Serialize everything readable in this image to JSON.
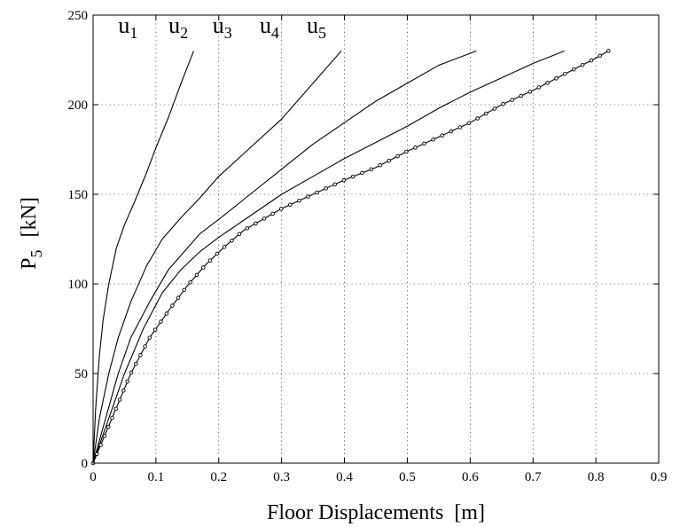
{
  "chart_data": {
    "type": "line",
    "xlabel": "Floor Displacements  [m]",
    "ylabel": "P",
    "ylabel_sub": "5",
    "ylabel_unit": "[kN]",
    "xlim": [
      0,
      0.9
    ],
    "ylim": [
      0,
      250
    ],
    "xticks": [
      0,
      0.1,
      0.2,
      0.3,
      0.4,
      0.5,
      0.6,
      0.7,
      0.8,
      0.9
    ],
    "xtick_labels": [
      "0",
      "0.1",
      "0.2",
      "0.3",
      "0.4",
      "0.5",
      "0.6",
      "0.7",
      "0.8",
      "0.9"
    ],
    "yticks": [
      0,
      50,
      100,
      150,
      200,
      250
    ],
    "ytick_labels": [
      "0",
      "50",
      "100",
      "150",
      "200",
      "250"
    ],
    "grid": true,
    "series": [
      {
        "name": "u1",
        "label_main": "u",
        "label_sub": "1",
        "marker": false,
        "label_at": [
          0.04,
          240
        ],
        "points": [
          [
            0,
            0
          ],
          [
            0.004,
            30
          ],
          [
            0.01,
            60
          ],
          [
            0.016,
            80
          ],
          [
            0.025,
            100
          ],
          [
            0.037,
            120
          ],
          [
            0.05,
            133
          ],
          [
            0.065,
            145
          ],
          [
            0.085,
            162
          ],
          [
            0.1,
            176
          ],
          [
            0.12,
            193
          ],
          [
            0.14,
            212
          ],
          [
            0.16,
            230
          ]
        ]
      },
      {
        "name": "u2",
        "label_main": "u",
        "label_sub": "2",
        "marker": false,
        "label_at": [
          0.12,
          240
        ],
        "points": [
          [
            0,
            0
          ],
          [
            0.01,
            25
          ],
          [
            0.025,
            50
          ],
          [
            0.04,
            70
          ],
          [
            0.06,
            90
          ],
          [
            0.085,
            110
          ],
          [
            0.11,
            125
          ],
          [
            0.14,
            137
          ],
          [
            0.17,
            148
          ],
          [
            0.2,
            160
          ],
          [
            0.25,
            176
          ],
          [
            0.3,
            192
          ],
          [
            0.35,
            212
          ],
          [
            0.395,
            230
          ]
        ]
      },
      {
        "name": "u3",
        "label_main": "u",
        "label_sub": "3",
        "marker": false,
        "label_at": [
          0.19,
          240
        ],
        "points": [
          [
            0,
            0
          ],
          [
            0.02,
            25
          ],
          [
            0.04,
            50
          ],
          [
            0.06,
            70
          ],
          [
            0.09,
            90
          ],
          [
            0.12,
            108
          ],
          [
            0.15,
            120
          ],
          [
            0.17,
            128
          ],
          [
            0.2,
            136
          ],
          [
            0.25,
            150
          ],
          [
            0.3,
            164
          ],
          [
            0.35,
            178
          ],
          [
            0.4,
            190
          ],
          [
            0.45,
            202
          ],
          [
            0.5,
            212
          ],
          [
            0.55,
            222
          ],
          [
            0.61,
            230
          ]
        ]
      },
      {
        "name": "u4",
        "label_main": "u",
        "label_sub": "4",
        "marker": false,
        "label_at": [
          0.265,
          240
        ],
        "points": [
          [
            0,
            0
          ],
          [
            0.025,
            25
          ],
          [
            0.05,
            50
          ],
          [
            0.08,
            75
          ],
          [
            0.11,
            95
          ],
          [
            0.14,
            108
          ],
          [
            0.17,
            118
          ],
          [
            0.2,
            126
          ],
          [
            0.25,
            138
          ],
          [
            0.3,
            150
          ],
          [
            0.35,
            160
          ],
          [
            0.4,
            170
          ],
          [
            0.5,
            188
          ],
          [
            0.55,
            198
          ],
          [
            0.6,
            207
          ],
          [
            0.65,
            215
          ],
          [
            0.7,
            223
          ],
          [
            0.75,
            230
          ]
        ]
      },
      {
        "name": "u5",
        "label_main": "u",
        "label_sub": "5",
        "marker": true,
        "label_at": [
          0.34,
          240
        ],
        "points": [
          [
            0,
            0
          ],
          [
            0.03,
            25
          ],
          [
            0.06,
            50
          ],
          [
            0.09,
            70
          ],
          [
            0.12,
            85
          ],
          [
            0.15,
            99
          ],
          [
            0.18,
            111
          ],
          [
            0.21,
            121
          ],
          [
            0.24,
            130
          ],
          [
            0.27,
            136
          ],
          [
            0.3,
            142
          ],
          [
            0.35,
            150
          ],
          [
            0.4,
            158
          ],
          [
            0.45,
            165
          ],
          [
            0.5,
            174
          ],
          [
            0.55,
            182
          ],
          [
            0.6,
            190
          ],
          [
            0.65,
            200
          ],
          [
            0.7,
            208
          ],
          [
            0.75,
            217
          ],
          [
            0.8,
            226
          ],
          [
            0.82,
            230
          ]
        ]
      }
    ]
  }
}
